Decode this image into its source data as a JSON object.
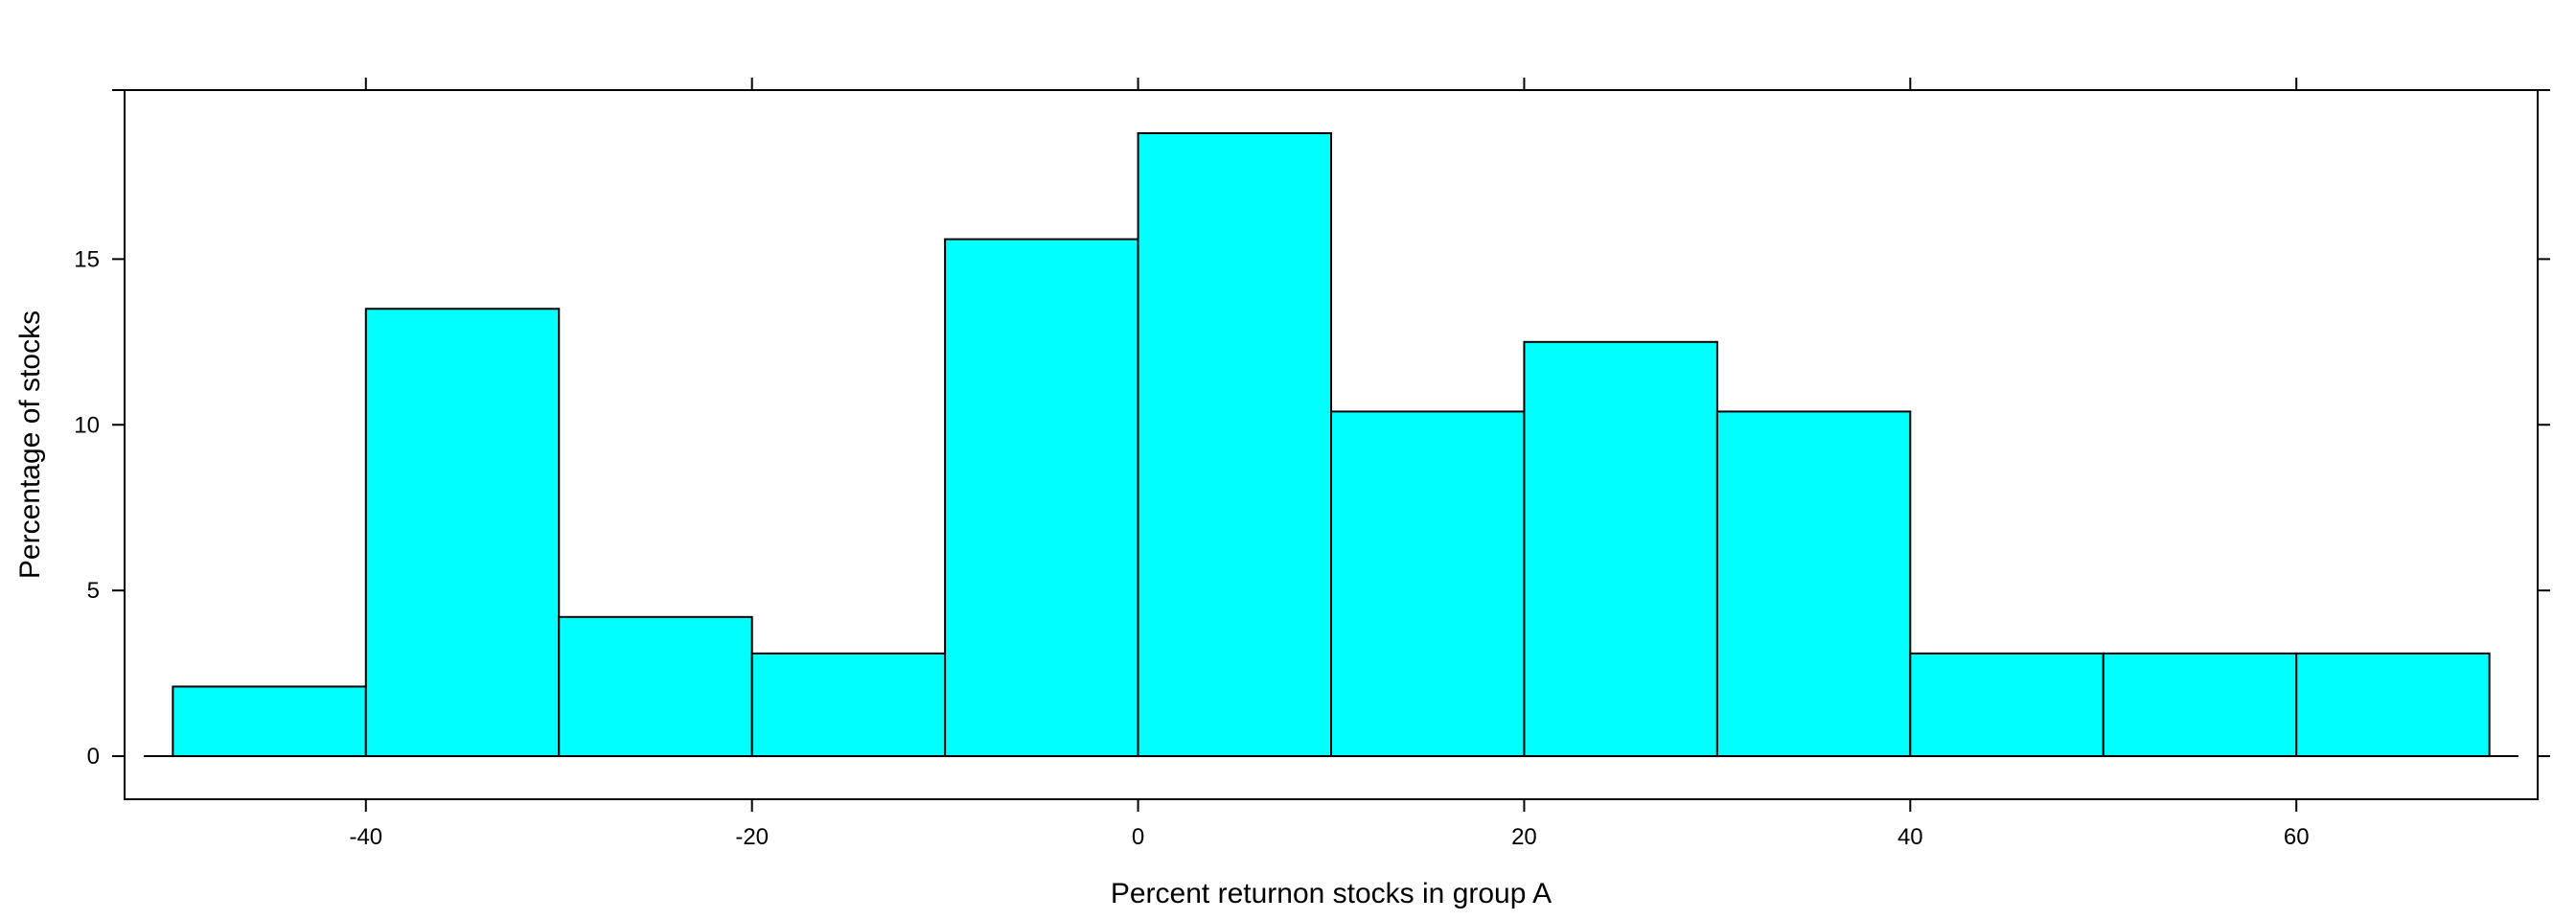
{
  "chart_data": {
    "type": "bar",
    "histogram": true,
    "xlabel": "Percent returnon stocks in group A",
    "ylabel": "Percentage of stocks",
    "bins": [
      {
        "x0": -50,
        "x1": -40,
        "value": 2.1
      },
      {
        "x0": -40,
        "x1": -30,
        "value": 13.5
      },
      {
        "x0": -30,
        "x1": -20,
        "value": 4.2
      },
      {
        "x0": -20,
        "x1": -10,
        "value": 3.1
      },
      {
        "x0": -10,
        "x1": 0,
        "value": 15.6
      },
      {
        "x0": 0,
        "x1": 10,
        "value": 18.8
      },
      {
        "x0": 10,
        "x1": 20,
        "value": 10.4
      },
      {
        "x0": 20,
        "x1": 30,
        "value": 12.5
      },
      {
        "x0": 30,
        "x1": 40,
        "value": 10.4
      },
      {
        "x0": 40,
        "x1": 50,
        "value": 3.1
      },
      {
        "x0": 50,
        "x1": 60,
        "value": 3.1
      },
      {
        "x0": 60,
        "x1": 70,
        "value": 3.1
      }
    ],
    "x_ticks": [
      -40,
      -20,
      0,
      20,
      40,
      60
    ],
    "x_tick_labels": [
      "-40",
      "-20",
      "0",
      "20",
      "40",
      "60"
    ],
    "y_ticks": [
      0,
      5,
      10,
      15
    ],
    "y_tick_labels": [
      "0",
      "5",
      "10",
      "15"
    ],
    "xlim": [
      -52.5,
      72.5
    ],
    "ylim": [
      -1.3,
      20.1
    ],
    "grid": false,
    "bar_color": "#00ffff",
    "edge_color": "#000000"
  }
}
